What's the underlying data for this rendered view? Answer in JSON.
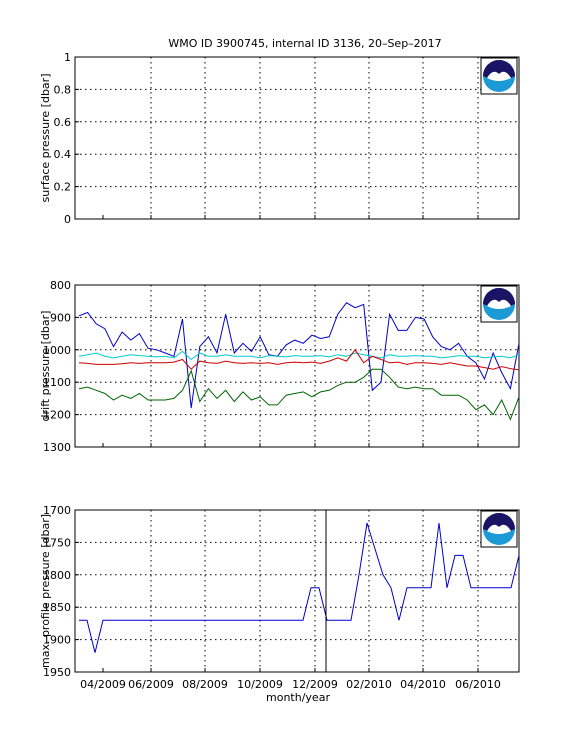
{
  "title": "WMO ID 3900745, internal ID 3136, 20–Sep–2017",
  "xlabel": "month/year",
  "xticks": [
    "04/2009",
    "06/2009",
    "08/2009",
    "10/2009",
    "12/2009",
    "02/2010",
    "04/2010",
    "06/2010"
  ],
  "logo": {
    "text": "NOAA",
    "colors": {
      "dark": "#1b1464",
      "blue": "#1c9ad6",
      "white": "#ffffff"
    }
  },
  "chart_data": [
    {
      "type": "line",
      "ylabel": "surface pressure [dbar]",
      "ylim": [
        0,
        1
      ],
      "yticks": [
        "0",
        "0.2",
        "0.4",
        "0.6",
        "0.8",
        "1"
      ],
      "reversed": false,
      "series": []
    },
    {
      "type": "line",
      "ylabel": "drift pressure [dbar]",
      "ylim": [
        800,
        1300
      ],
      "yticks": [
        "800",
        "900",
        "1000",
        "1100",
        "1200",
        "1300"
      ],
      "reversed": true,
      "series": [
        {
          "color": "#0000cc",
          "values": [
            895,
            885,
            920,
            935,
            990,
            945,
            970,
            950,
            995,
            1000,
            1010,
            1020,
            905,
            1180,
            990,
            960,
            1010,
            890,
            1010,
            980,
            1005,
            960,
            1015,
            1020,
            985,
            970,
            980,
            955,
            965,
            960,
            890,
            855,
            870,
            860,
            1125,
            1100,
            890,
            940,
            940,
            900,
            905,
            960,
            990,
            1000,
            980,
            1020,
            1040,
            1090,
            1010,
            1070,
            1120,
            980
          ]
        },
        {
          "color": "#00cccc",
          "values": [
            1020,
            1015,
            1010,
            1020,
            1025,
            1020,
            1015,
            1018,
            1020,
            1022,
            1020,
            1025,
            1005,
            1030,
            1010,
            1020,
            1020,
            1015,
            1020,
            1020,
            1020,
            1025,
            1018,
            1020,
            1022,
            1018,
            1020,
            1020,
            1018,
            1022,
            1015,
            1020,
            1010,
            1015,
            1020,
            1025,
            1015,
            1020,
            1020,
            1018,
            1020,
            1020,
            1025,
            1022,
            1018,
            1020,
            1020,
            1025,
            1022,
            1020,
            1025,
            1015
          ]
        },
        {
          "color": "#cc0000",
          "values": [
            1040,
            1042,
            1045,
            1045,
            1045,
            1043,
            1040,
            1042,
            1040,
            1040,
            1040,
            1038,
            1030,
            1060,
            1035,
            1040,
            1042,
            1035,
            1040,
            1042,
            1040,
            1042,
            1040,
            1045,
            1040,
            1038,
            1040,
            1038,
            1042,
            1035,
            1025,
            1035,
            1000,
            1040,
            1020,
            1030,
            1040,
            1038,
            1045,
            1040,
            1040,
            1042,
            1045,
            1040,
            1045,
            1050,
            1050,
            1055,
            1060,
            1052,
            1058,
            1062
          ]
        },
        {
          "color": "#006600",
          "values": [
            1120,
            1115,
            1125,
            1135,
            1155,
            1140,
            1150,
            1135,
            1155,
            1155,
            1155,
            1150,
            1125,
            1065,
            1160,
            1120,
            1150,
            1125,
            1160,
            1130,
            1155,
            1145,
            1170,
            1170,
            1140,
            1135,
            1130,
            1145,
            1130,
            1125,
            1110,
            1100,
            1100,
            1085,
            1060,
            1060,
            1085,
            1115,
            1120,
            1115,
            1120,
            1120,
            1140,
            1140,
            1140,
            1155,
            1185,
            1170,
            1200,
            1155,
            1215,
            1145
          ]
        }
      ]
    },
    {
      "type": "line",
      "ylabel": "max. profile pressure [dbar]",
      "ylim": [
        1700,
        1950
      ],
      "yticks": [
        "1700",
        "1750",
        "1800",
        "1850",
        "1900",
        "1950"
      ],
      "reversed": true,
      "series": [
        {
          "color": "#0000cc",
          "values": [
            1870,
            1870,
            1920,
            1870,
            1870,
            1870,
            1870,
            1870,
            1870,
            1870,
            1870,
            1870,
            1870,
            1870,
            1870,
            1870,
            1870,
            1870,
            1870,
            1870,
            1870,
            1870,
            1870,
            1870,
            1870,
            1870,
            1870,
            1870,
            1870,
            1820,
            1820,
            1870,
            1870,
            1870,
            1870,
            1800,
            1720,
            1760,
            1800,
            1820,
            1870,
            1820,
            1820,
            1820,
            1820,
            1720,
            1820,
            1770,
            1770,
            1820,
            1820,
            1820,
            1820,
            1820,
            1820,
            1770
          ]
        }
      ],
      "annotation": {
        "type": "vline",
        "label": ""
      }
    }
  ]
}
